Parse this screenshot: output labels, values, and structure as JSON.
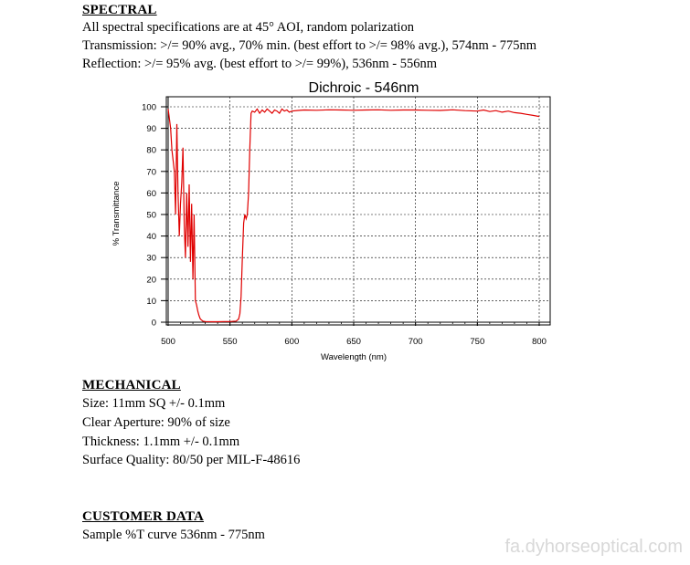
{
  "spectral": {
    "heading": "SPECTRAL",
    "lines": [
      "All spectral specifications are at 45° AOI, random polarization",
      "Transmission: >/= 90% avg., 70% min. (best effort to >/= 98% avg.), 574nm - 775nm",
      "Reflection: >/= 95% avg. (best effort to >/= 99%), 536nm - 556nm"
    ]
  },
  "chart_data": {
    "type": "line",
    "title": "Dichroic - 546nm",
    "xlabel": "Wavelength (nm)",
    "ylabel": "% Transmittance",
    "xlim": [
      500,
      800
    ],
    "ylim": [
      0,
      100
    ],
    "xticks": [
      500,
      550,
      600,
      650,
      700,
      750,
      800
    ],
    "yticks": [
      0,
      10,
      20,
      30,
      40,
      50,
      60,
      70,
      80,
      90,
      100
    ],
    "grid": true,
    "line_color": "#e00000",
    "series": [
      {
        "x": [
          500,
          502,
          503,
          505,
          506,
          507,
          508,
          509,
          510,
          511,
          512,
          513,
          514,
          515,
          516,
          517,
          518,
          519,
          520,
          521,
          522,
          523,
          524,
          525,
          526,
          527,
          528,
          530,
          535,
          540,
          545,
          550,
          555,
          557,
          558,
          559,
          560,
          561,
          562,
          563,
          564,
          565,
          566,
          567,
          568,
          570,
          572,
          574,
          576,
          578,
          580,
          582,
          584,
          586,
          588,
          590,
          592,
          594,
          596,
          598,
          600,
          605,
          610,
          620,
          630,
          640,
          650,
          660,
          670,
          680,
          690,
          700,
          710,
          720,
          730,
          740,
          750,
          755,
          760,
          765,
          770,
          775,
          780,
          785,
          790,
          795,
          800
        ],
        "y": [
          99,
          90,
          80,
          70,
          50,
          92,
          60,
          40,
          55,
          65,
          81,
          45,
          30,
          60,
          35,
          64,
          28,
          55,
          20,
          50,
          10,
          8,
          5,
          3,
          1.5,
          1,
          0.5,
          0.3,
          0.2,
          0.2,
          0.3,
          0.3,
          0.5,
          1.5,
          4,
          12,
          30,
          46,
          50,
          48,
          50,
          60,
          80,
          97,
          98,
          97.5,
          99,
          97,
          98.5,
          97.5,
          99,
          98,
          97,
          98.5,
          98,
          97,
          99,
          98,
          98.5,
          97.5,
          98,
          98.3,
          98.5,
          98.4,
          98.6,
          98.5,
          98.4,
          98.5,
          98.6,
          98.4,
          98.5,
          98.5,
          98.4,
          98.3,
          98.6,
          98.2,
          98,
          98.5,
          97.8,
          98.2,
          97.5,
          98,
          97.3,
          97,
          96.5,
          96,
          95.5
        ]
      }
    ]
  },
  "mechanical": {
    "heading": "MECHANICAL",
    "lines": [
      "Size: 11mm SQ +/- 0.1mm",
      "Clear Aperture: 90% of size",
      "Thickness: 1.1mm +/- 0.1mm",
      "Surface Quality: 80/50 per MIL-F-48616"
    ]
  },
  "customer": {
    "heading": "CUSTOMER DATA",
    "lines": [
      "Sample %T curve 536nm - 775nm"
    ]
  },
  "watermark": "fa.dyhorseoptical.com"
}
